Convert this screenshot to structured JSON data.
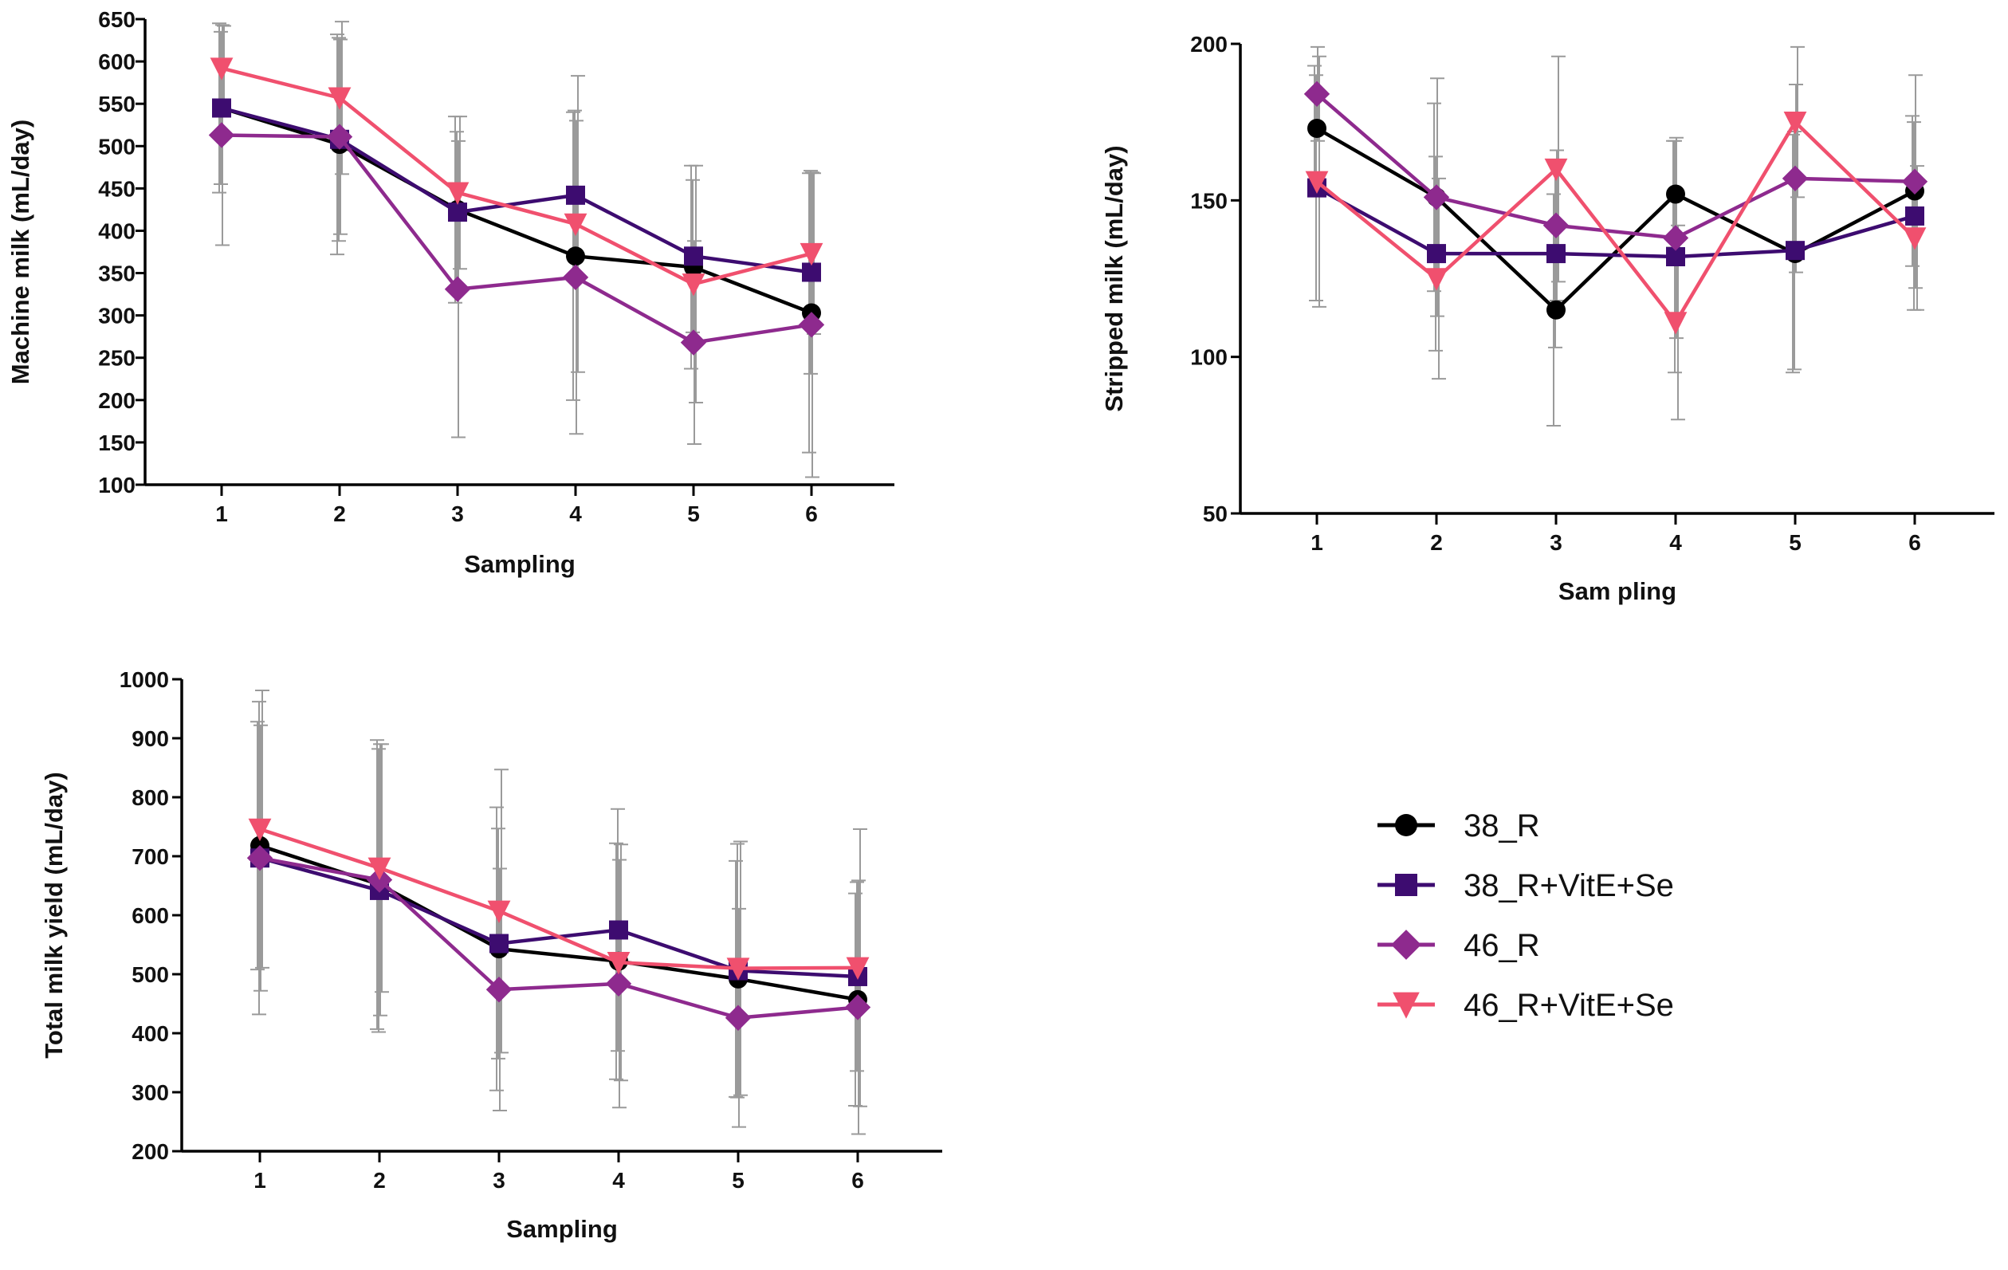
{
  "series_styles": [
    {
      "name": "38_R",
      "color": "#000000",
      "marker": "circle"
    },
    {
      "name": "38_R+VitE+Se",
      "color": "#3d0c70",
      "marker": "square"
    },
    {
      "name": "46_R",
      "color": "#8e2a8e",
      "marker": "diamond"
    },
    {
      "name": "46_R+VitE+Se",
      "color": "#f0506e",
      "marker": "triangle-down"
    }
  ],
  "error_bar_color": "#9a9a9a",
  "legend": {
    "placement": "right-middle",
    "items": [
      "38_R",
      "38_R+VitE+Se",
      "46_R",
      "46_R+VitE+Se"
    ]
  },
  "chart_data": [
    {
      "id": "machine",
      "type": "line",
      "xlabel": "Sampling",
      "ylabel": "Machine milk (mL/day)",
      "categories": [
        "1",
        "2",
        "3",
        "4",
        "5",
        "6"
      ],
      "ylim": [
        100,
        650
      ],
      "yticks": [
        100,
        150,
        200,
        250,
        300,
        350,
        400,
        450,
        500,
        550,
        600,
        650
      ],
      "series": [
        {
          "name": "38_R",
          "values": [
            545,
            502,
            425,
            370,
            357,
            303
          ],
          "err": [
            100,
            130,
            110,
            170,
            120,
            165
          ]
        },
        {
          "name": "38_R+VitE+Se",
          "values": [
            545,
            508,
            422,
            442,
            370,
            351
          ],
          "err": [
            90,
            120,
            95,
            100,
            90,
            120
          ]
        },
        {
          "name": "46_R",
          "values": [
            513,
            511,
            331,
            345,
            268,
            289
          ],
          "err": [
            130,
            115,
            175,
            185,
            120,
            180
          ]
        },
        {
          "name": "46_R+VitE+Se",
          "values": [
            592,
            557,
            445,
            408,
            337,
            373
          ],
          "err": [
            50,
            90,
            90,
            175,
            140,
            95
          ]
        }
      ]
    },
    {
      "id": "stripped",
      "type": "line",
      "xlabel": "Sam pling",
      "ylabel": "Stripped milk (mL/day)",
      "categories": [
        "1",
        "2",
        "3",
        "4",
        "5",
        "6"
      ],
      "ylim": [
        50,
        200
      ],
      "yticks": [
        50,
        100,
        150,
        200
      ],
      "series": [
        {
          "name": "38_R",
          "values": [
            173,
            151,
            115,
            152,
            133,
            153
          ],
          "err": [
            20,
            30,
            37,
            17,
            38,
            24
          ]
        },
        {
          "name": "38_R+VitE+Se",
          "values": [
            154,
            133,
            133,
            132,
            134,
            145
          ],
          "err": [
            36,
            31,
            30,
            37,
            38,
            30
          ]
        },
        {
          "name": "46_R",
          "values": [
            184,
            151,
            142,
            138,
            157,
            156
          ],
          "err": [
            15,
            38,
            24,
            32,
            30,
            34
          ]
        },
        {
          "name": "46_R+VitE+Se",
          "values": [
            156,
            125,
            160,
            111,
            175,
            138
          ],
          "err": [
            40,
            32,
            36,
            31,
            24,
            23
          ]
        }
      ]
    },
    {
      "id": "total",
      "type": "line",
      "xlabel": "Sampling",
      "ylabel": "Total milk yield (mL/day)",
      "categories": [
        "1",
        "2",
        "3",
        "4",
        "5",
        "6"
      ],
      "ylim": [
        200,
        1000
      ],
      "yticks": [
        200,
        300,
        400,
        500,
        600,
        700,
        800,
        900,
        1000
      ],
      "series": [
        {
          "name": "38_R",
          "values": [
            718,
            652,
            543,
            522,
            492,
            457
          ],
          "err": [
            210,
            245,
            240,
            200,
            200,
            180
          ]
        },
        {
          "name": "38_R+VitE+Se",
          "values": [
            697,
            642,
            552,
            575,
            506,
            496
          ],
          "err": [
            265,
            240,
            195,
            205,
            215,
            160
          ]
        },
        {
          "name": "46_R",
          "values": [
            697,
            660,
            474,
            484,
            426,
            444
          ],
          "err": [
            225,
            230,
            205,
            210,
            185,
            215
          ]
        },
        {
          "name": "46_R+VitE+Se",
          "values": [
            746,
            680,
            607,
            520,
            510,
            511
          ],
          "err": [
            235,
            210,
            240,
            200,
            215,
            235
          ]
        }
      ]
    }
  ]
}
